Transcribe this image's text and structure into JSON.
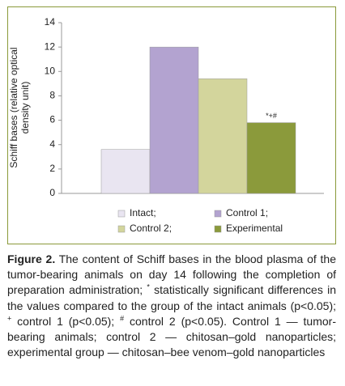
{
  "chart_data": {
    "type": "bar",
    "ylabel": [
      "Schiff bases (relative optical",
      "density unit)"
    ],
    "categories": [
      "Intact;",
      "Control 1;",
      "Control 2;",
      "Experimental"
    ],
    "values": [
      3.6,
      12.0,
      9.4,
      5.8
    ],
    "colors": [
      "#e9e5f1",
      "#b3a3d0",
      "#d3d59c",
      "#8b9a3b"
    ],
    "annotation": "*+#",
    "ylim": [
      0,
      14
    ],
    "yticks": [
      0,
      2,
      4,
      6,
      8,
      10,
      12,
      14
    ],
    "grid": false
  },
  "caption": {
    "label": "Figure 2.",
    "parts": [
      " The content of Schiff bases in the blood plasma of the tumor-bearing animals on day 14 following the completion of preparation administration; ",
      "*",
      " statistically significant differences in the values compared to the group of the intact animals (p<0.05); ",
      "+",
      " control 1 (p<0.05); ",
      "#",
      " control 2 (p<0.05). Control 1 — tumor-bearing animals; control 2 — chitosan–gold nanoparticles; experimental group — chitosan–bee venom–gold nanoparticles"
    ]
  }
}
